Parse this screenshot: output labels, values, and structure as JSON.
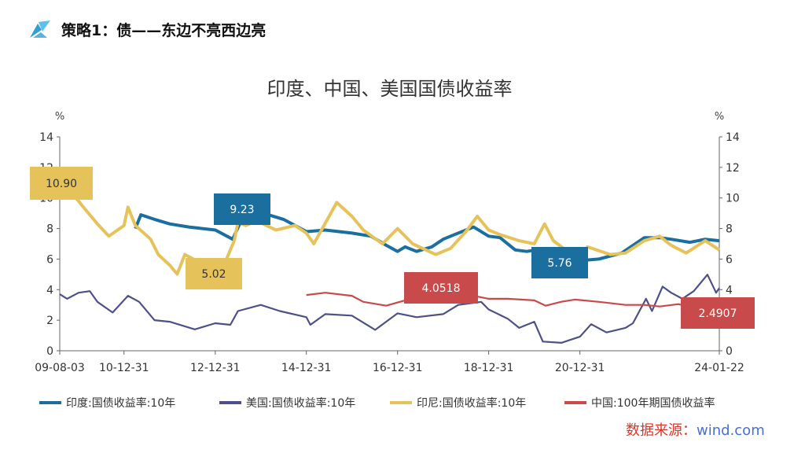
{
  "header": {
    "title": "策略1：债——东边不亮西边亮"
  },
  "watermark": {
    "part1": "数据来源：",
    "part2": "wind.com"
  },
  "colors": {
    "india": "#1b6f9e",
    "us": "#4d5187",
    "indonesia": "#e6c35a",
    "china": "#c84a4a",
    "header_icon": "#2f9fd6"
  },
  "chart_data": {
    "type": "line",
    "title": "印度、中国、美国国债收益率",
    "y_unit_left": "%",
    "y_unit_right": "%",
    "ylim": [
      0,
      14
    ],
    "y_ticks": [
      0,
      2,
      4,
      6,
      8,
      10,
      12,
      14
    ],
    "x_range": [
      "2009-08-03",
      "2024-01-22"
    ],
    "x_tick_labels": [
      "09-08-03",
      "10-12-31",
      "12-12-31",
      "14-12-31",
      "16-12-31",
      "18-12-31",
      "20-12-31",
      "24-01-22"
    ],
    "x_tick_dates": [
      "2009-08-03",
      "2010-12-31",
      "2012-12-31",
      "2014-12-31",
      "2016-12-31",
      "2018-12-31",
      "2020-12-31",
      "2024-01-22"
    ],
    "grid": false,
    "legend_position": "bottom",
    "series": [
      {
        "name": "印度:国债收益率:10年",
        "color": "#1b6f9e",
        "points": [
          [
            "2011-04-01",
            8.0
          ],
          [
            "2011-05-15",
            8.9
          ],
          [
            "2011-09-01",
            8.6
          ],
          [
            "2012-01-01",
            8.3
          ],
          [
            "2012-06-01",
            8.1
          ],
          [
            "2013-01-01",
            7.9
          ],
          [
            "2013-05-20",
            7.3
          ],
          [
            "2013-07-15",
            8.3
          ],
          [
            "2013-09-01",
            8.9
          ],
          [
            "2013-12-01",
            9.23
          ],
          [
            "2014-03-01",
            8.9
          ],
          [
            "2014-07-01",
            8.6
          ],
          [
            "2015-01-01",
            7.8
          ],
          [
            "2015-06-01",
            7.9
          ],
          [
            "2016-01-01",
            7.7
          ],
          [
            "2016-06-01",
            7.5
          ],
          [
            "2016-10-01",
            6.9
          ],
          [
            "2016-12-31",
            6.5
          ],
          [
            "2017-03-01",
            6.8
          ],
          [
            "2017-06-01",
            6.5
          ],
          [
            "2017-10-01",
            6.8
          ],
          [
            "2018-01-01",
            7.3
          ],
          [
            "2018-04-01",
            7.6
          ],
          [
            "2018-09-01",
            8.1
          ],
          [
            "2018-12-31",
            7.5
          ],
          [
            "2019-04-01",
            7.4
          ],
          [
            "2019-08-01",
            6.6
          ],
          [
            "2019-11-01",
            6.5
          ],
          [
            "2020-01-15",
            6.6
          ],
          [
            "2020-03-01",
            6.2
          ],
          [
            "2020-06-01",
            5.9
          ],
          [
            "2020-09-01",
            5.76
          ],
          [
            "2020-12-31",
            5.9
          ],
          [
            "2021-06-01",
            6.0
          ],
          [
            "2021-12-01",
            6.4
          ],
          [
            "2022-06-01",
            7.4
          ],
          [
            "2022-10-01",
            7.4
          ],
          [
            "2023-01-01",
            7.3
          ],
          [
            "2023-06-01",
            7.1
          ],
          [
            "2023-10-01",
            7.3
          ],
          [
            "2024-01-22",
            7.2
          ]
        ]
      },
      {
        "name": "美国:国债收益率:10年",
        "color": "#4d5187",
        "points": [
          [
            "2009-08-03",
            3.7
          ],
          [
            "2009-10-01",
            3.4
          ],
          [
            "2010-01-01",
            3.8
          ],
          [
            "2010-04-01",
            3.9
          ],
          [
            "2010-06-01",
            3.2
          ],
          [
            "2010-10-01",
            2.5
          ],
          [
            "2011-02-01",
            3.6
          ],
          [
            "2011-05-01",
            3.2
          ],
          [
            "2011-09-01",
            2.0
          ],
          [
            "2012-01-01",
            1.9
          ],
          [
            "2012-07-20",
            1.4
          ],
          [
            "2012-12-31",
            1.8
          ],
          [
            "2013-05-01",
            1.7
          ],
          [
            "2013-07-01",
            2.6
          ],
          [
            "2013-12-31",
            3.0
          ],
          [
            "2014-06-01",
            2.6
          ],
          [
            "2014-12-31",
            2.2
          ],
          [
            "2015-02-01",
            1.7
          ],
          [
            "2015-06-01",
            2.4
          ],
          [
            "2015-12-31",
            2.3
          ],
          [
            "2016-07-05",
            1.37
          ],
          [
            "2016-12-31",
            2.45
          ],
          [
            "2017-06-01",
            2.2
          ],
          [
            "2017-12-31",
            2.4
          ],
          [
            "2018-05-01",
            3.0
          ],
          [
            "2018-11-01",
            3.2
          ],
          [
            "2018-12-31",
            2.7
          ],
          [
            "2019-06-01",
            2.1
          ],
          [
            "2019-09-01",
            1.5
          ],
          [
            "2019-12-31",
            1.9
          ],
          [
            "2020-03-09",
            0.6
          ],
          [
            "2020-08-04",
            0.52
          ],
          [
            "2020-12-31",
            0.92
          ],
          [
            "2021-03-31",
            1.74
          ],
          [
            "2021-08-01",
            1.2
          ],
          [
            "2021-12-31",
            1.5
          ],
          [
            "2022-03-01",
            1.8
          ],
          [
            "2022-06-14",
            3.4
          ],
          [
            "2022-08-01",
            2.6
          ],
          [
            "2022-10-24",
            4.2
          ],
          [
            "2023-01-01",
            3.8
          ],
          [
            "2023-04-01",
            3.4
          ],
          [
            "2023-07-01",
            3.9
          ],
          [
            "2023-10-19",
            4.98
          ],
          [
            "2023-12-27",
            3.8
          ],
          [
            "2024-01-22",
            4.1
          ]
        ]
      },
      {
        "name": "印尼:国债收益率:10年",
        "color": "#e6c35a",
        "points": [
          [
            "2009-08-03",
            10.9
          ],
          [
            "2009-12-01",
            10.1
          ],
          [
            "2010-03-01",
            9.2
          ],
          [
            "2010-06-01",
            8.3
          ],
          [
            "2010-09-01",
            7.5
          ],
          [
            "2010-12-31",
            8.2
          ],
          [
            "2011-02-01",
            9.4
          ],
          [
            "2011-04-01",
            8.2
          ],
          [
            "2011-08-01",
            7.3
          ],
          [
            "2011-10-01",
            6.3
          ],
          [
            "2012-01-01",
            5.6
          ],
          [
            "2012-03-01",
            5.02
          ],
          [
            "2012-05-01",
            6.3
          ],
          [
            "2012-08-01",
            5.9
          ],
          [
            "2012-12-31",
            5.1
          ],
          [
            "2013-03-01",
            5.4
          ],
          [
            "2013-06-01",
            7.2
          ],
          [
            "2013-07-01",
            8.4
          ],
          [
            "2013-09-01",
            8.2
          ],
          [
            "2013-12-01",
            8.5
          ],
          [
            "2014-05-01",
            7.9
          ],
          [
            "2014-10-01",
            8.2
          ],
          [
            "2014-12-31",
            7.7
          ],
          [
            "2015-03-01",
            7.0
          ],
          [
            "2015-09-01",
            9.7
          ],
          [
            "2015-12-31",
            8.8
          ],
          [
            "2016-04-01",
            7.9
          ],
          [
            "2016-09-01",
            7.0
          ],
          [
            "2016-12-31",
            8.0
          ],
          [
            "2017-05-01",
            7.0
          ],
          [
            "2017-11-01",
            6.3
          ],
          [
            "2018-03-01",
            6.7
          ],
          [
            "2018-07-01",
            7.8
          ],
          [
            "2018-10-01",
            8.8
          ],
          [
            "2018-12-31",
            7.9
          ],
          [
            "2019-04-01",
            7.6
          ],
          [
            "2019-09-01",
            7.2
          ],
          [
            "2019-12-31",
            7.0
          ],
          [
            "2020-03-23",
            8.3
          ],
          [
            "2020-06-01",
            7.2
          ],
          [
            "2020-12-31",
            5.9
          ],
          [
            "2021-03-01",
            6.8
          ],
          [
            "2021-09-01",
            6.3
          ],
          [
            "2021-12-31",
            6.4
          ],
          [
            "2022-06-01",
            7.2
          ],
          [
            "2022-10-01",
            7.5
          ],
          [
            "2023-01-01",
            6.9
          ],
          [
            "2023-05-01",
            6.4
          ],
          [
            "2023-10-01",
            7.2
          ],
          [
            "2024-01-22",
            6.6
          ]
        ]
      },
      {
        "name": "中国:100年期国债收益率",
        "color": "#c84a4a",
        "points": [
          [
            "2014-12-31",
            3.65
          ],
          [
            "2015-06-01",
            3.8
          ],
          [
            "2015-12-31",
            3.6
          ],
          [
            "2016-04-01",
            3.2
          ],
          [
            "2016-10-01",
            2.95
          ],
          [
            "2017-03-01",
            3.3
          ],
          [
            "2017-06-01",
            3.5
          ],
          [
            "2017-11-01",
            4.0518
          ],
          [
            "2018-05-01",
            3.8
          ],
          [
            "2018-12-31",
            3.4
          ],
          [
            "2019-06-01",
            3.4
          ],
          [
            "2019-12-31",
            3.3
          ],
          [
            "2020-04-01",
            2.95
          ],
          [
            "2020-08-01",
            3.2
          ],
          [
            "2020-11-20",
            3.35
          ],
          [
            "2021-06-01",
            3.2
          ],
          [
            "2021-12-31",
            3.0
          ],
          [
            "2022-06-01",
            3.0
          ],
          [
            "2022-10-01",
            2.9
          ],
          [
            "2023-03-01",
            3.05
          ],
          [
            "2023-08-01",
            2.7
          ],
          [
            "2024-01-22",
            2.4907
          ]
        ]
      }
    ],
    "annotations": [
      {
        "label": "10.90",
        "series": "印尼:国债收益率:10年",
        "x": "2009-08-03",
        "y": 10.9
      },
      {
        "label": "5.02",
        "series": "印尼:国债收益率:10年",
        "x": "2012-03-01",
        "y": 5.02
      },
      {
        "label": "9.23",
        "series": "印度:国债收益率:10年",
        "x": "2013-12-01",
        "y": 9.23
      },
      {
        "label": "4.0518",
        "series": "中国:100年期国债收益率",
        "x": "2017-11-01",
        "y": 4.0518
      },
      {
        "label": "5.76",
        "series": "印度:国债收益率:10年",
        "x": "2020-09-01",
        "y": 5.76
      },
      {
        "label": "2.4907",
        "series": "中国:100年期国债收益率",
        "x": "2024-01-22",
        "y": 2.4907
      }
    ]
  }
}
